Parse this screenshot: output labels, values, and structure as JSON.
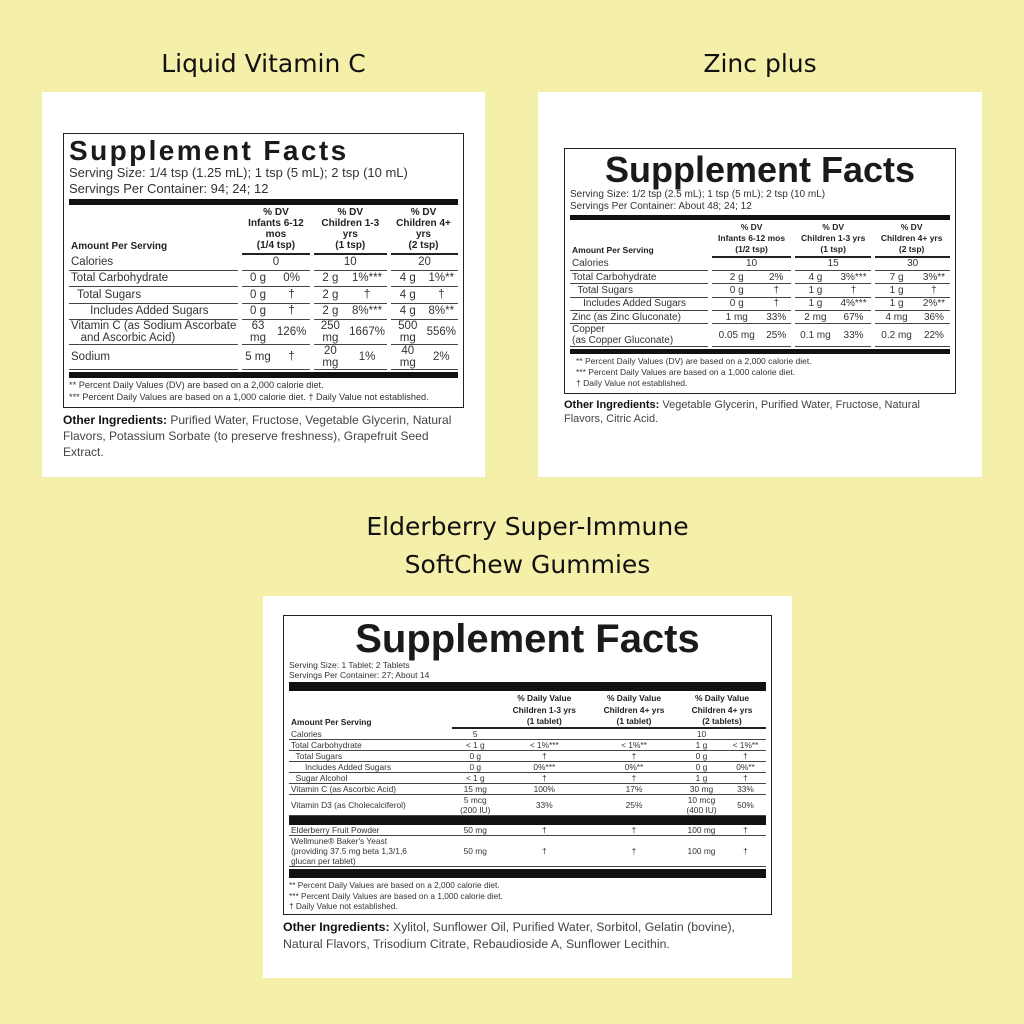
{
  "background_color": "#f4f0a9",
  "panels": [
    {
      "title": "Liquid Vitamin C",
      "label": {
        "heading": "Supplement Facts",
        "serving_size": "Serving Size: 1/4 tsp (1.25 mL); 1 tsp (5 mL); 2 tsp (10 mL)",
        "servings_per_container": "Servings Per Container: 94; 24; 12",
        "amount_header": "Amount Per Serving",
        "column_headers": [
          "% DV\nInfants 6-12 mos\n(1/4 tsp)",
          "% DV\nChildren 1-3 yrs\n(1 tsp)",
          "% DV\nChildren 4+ yrs\n(2 tsp)"
        ],
        "sections": [
          [
            {
              "name": "Calories",
              "cells": [
                "0",
                "10",
                "20"
              ]
            },
            {
              "name": "Total Carbohydrate",
              "cells": [
                "0 g",
                "0%",
                "2 g",
                "1%***",
                "4 g",
                "1%**"
              ]
            },
            {
              "name": "  Total Sugars",
              "cells": [
                "0 g",
                "†",
                "2 g",
                "†",
                "4 g",
                "†"
              ]
            },
            {
              "name": "      Includes Added Sugars",
              "cells": [
                "0 g",
                "†",
                "2 g",
                "8%***",
                "4 g",
                "8%**"
              ]
            },
            {
              "name": "Vitamin C (as Sodium Ascorbate\n   and Ascorbic Acid)",
              "cells": [
                "63 mg",
                "126%",
                "250 mg",
                "1667%",
                "500 mg",
                "556%"
              ]
            },
            {
              "name": "Sodium",
              "cells": [
                "5 mg",
                "†",
                "20 mg",
                "1%",
                "40 mg",
                "2%"
              ]
            }
          ]
        ],
        "footnotes": [
          "** Percent Daily Values (DV) are based on a 2,000 calorie diet.",
          "*** Percent Daily Values are based on a 1,000 calorie diet. † Daily Value not established."
        ]
      },
      "other_ingredients_label": "Other Ingredients:",
      "other_ingredients": "Purified Water, Fructose, Vegetable Glycerin, Natural Flavors, Potassium Sorbate (to preserve freshness), Grapefruit Seed Extract."
    },
    {
      "title": "Zinc plus",
      "label": {
        "heading": "Supplement Facts",
        "serving_size": "Serving Size: 1/2 tsp (2.5 mL); 1 tsp (5 mL); 2 tsp (10 mL)",
        "servings_per_container": "Servings Per Container: About 48; 24; 12",
        "amount_header": "Amount Per Serving",
        "column_headers": [
          "% DV\nInfants 6-12 mos\n(1/2 tsp)",
          "% DV\nChildren 1-3 yrs\n(1 tsp)",
          "% DV\nChildren 4+ yrs\n(2 tsp)"
        ],
        "sections": [
          [
            {
              "name": "Calories",
              "cells": [
                "10",
                "15",
                "30"
              ]
            },
            {
              "name": "Total Carbohydrate",
              "cells": [
                "2 g",
                "2%",
                "4 g",
                "3%***",
                "7 g",
                "3%**"
              ]
            },
            {
              "name": "  Total Sugars",
              "cells": [
                "0 g",
                "†",
                "1 g",
                "†",
                "1 g",
                "†"
              ]
            },
            {
              "name": "    Includes Added Sugars",
              "cells": [
                "0 g",
                "†",
                "1 g",
                "4%***",
                "1 g",
                "2%**"
              ]
            },
            {
              "name": "Zinc (as Zinc Gluconate)",
              "cells": [
                "1 mg",
                "33%",
                "2 mg",
                "67%",
                "4 mg",
                "36%"
              ]
            },
            {
              "name": "Copper\n(as Copper Gluconate)",
              "cells": [
                "0.05 mg",
                "25%",
                "0.1 mg",
                "33%",
                "0.2 mg",
                "22%"
              ]
            }
          ]
        ],
        "footnotes": [
          "** Percent Daily Values (DV) are based on a 2,000 calorie diet.",
          "*** Percent Daily Values are based on a 1,000 calorie diet.",
          "† Daily Value not established."
        ]
      },
      "other_ingredients_label": "Other Ingredients:",
      "other_ingredients": "Vegetable Glycerin, Purified Water, Fructose, Natural Flavors, Citric Acid."
    },
    {
      "title": "Elderberry Super-Immune\nSoftChew Gummies",
      "label": {
        "heading": "Supplement Facts",
        "serving_size": "Serving Size: 1 Tablet; 2 Tablets",
        "servings_per_container": "Servings Per Container: 27; About 14",
        "amount_header": "Amount Per Serving",
        "column_headers": [
          "",
          "% Daily Value\nChildren 1-3 yrs\n(1 tablet)",
          "% Daily Value\nChildren 4+ yrs\n(1 tablet)",
          "% Daily Value\nChildren 4+ yrs\n(2 tablets)"
        ],
        "sections": [
          [
            {
              "name": "Calories",
              "cells": [
                "5",
                "",
                "",
                "10",
                ""
              ]
            },
            {
              "name": "Total Carbohydrate",
              "cells": [
                "< 1 g",
                "< 1%***",
                "< 1%**",
                "1 g",
                "< 1%**"
              ]
            },
            {
              "name": "  Total Sugars",
              "cells": [
                "0 g",
                "†",
                "†",
                "0 g",
                "†"
              ]
            },
            {
              "name": "      Includes Added Sugars",
              "cells": [
                "0 g",
                "0%***",
                "0%**",
                "0 g",
                "0%**"
              ]
            },
            {
              "name": "  Sugar Alcohol",
              "cells": [
                "< 1 g",
                "†",
                "†",
                "1 g",
                "†"
              ]
            },
            {
              "name": "Vitamin C (as Ascorbic Acid)",
              "cells": [
                "15 mg",
                "100%",
                "17%",
                "30 mg",
                "33%"
              ]
            },
            {
              "name": "Vitamin D3 (as Cholecalciferol)",
              "cells": [
                "5 mcg\n(200 IU)",
                "33%",
                "25%",
                "10 mcg\n(400 IU)",
                "50%"
              ]
            }
          ],
          [
            {
              "name": "Elderberry Fruit Powder",
              "cells": [
                "50 mg",
                "†",
                "†",
                "100 mg",
                "†"
              ]
            },
            {
              "name": "Wellmune® Baker's Yeast\n(providing 37.5 mg beta 1,3/1,6\nglucan per tablet)",
              "cells": [
                "50 mg",
                "†",
                "†",
                "100 mg",
                "†"
              ]
            }
          ]
        ],
        "footnotes": [
          "** Percent Daily Values are based on a 2,000 calorie diet.",
          "*** Percent Daily Values are based on a 1,000 calorie diet.",
          "† Daily Value not established."
        ]
      },
      "other_ingredients_label": "Other Ingredients:",
      "other_ingredients": "Xylitol, Sunflower Oil, Purified Water, Sorbitol, Gelatin (bovine), Natural Flavors, Trisodium Citrate, Rebaudioside A, Sunflower Lecithin."
    }
  ]
}
